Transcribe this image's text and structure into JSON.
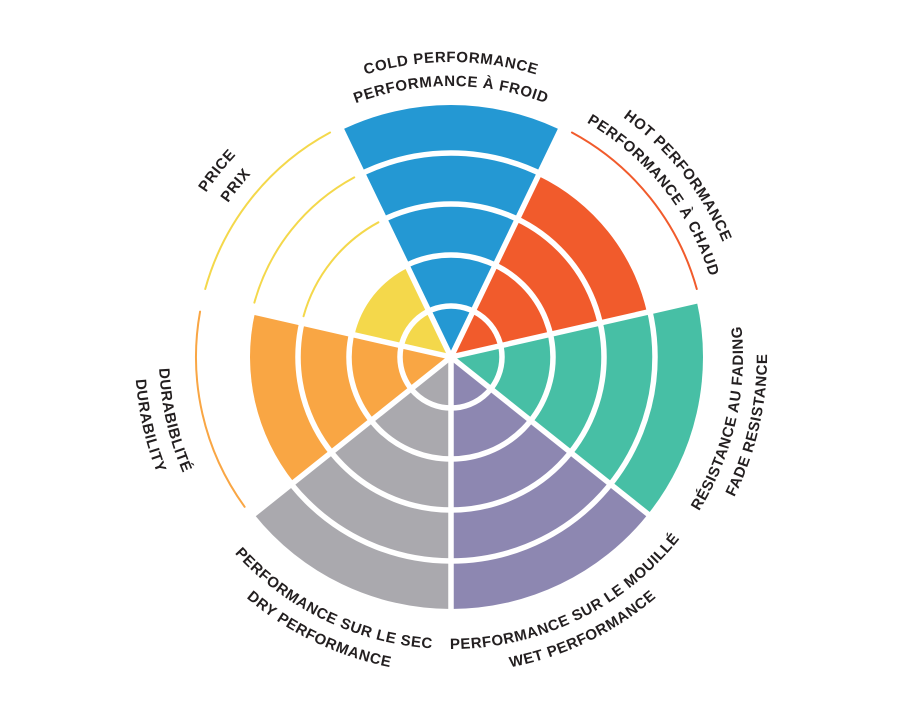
{
  "page": {
    "background": "#FFFFFF",
    "label_text_color": "#231F20"
  },
  "chart_data": {
    "type": "polar_sector_wheel",
    "title": "",
    "description": "Tire rating wheel: 7 sectors, each filled to a score out of 5 concentric rings; unfilled rings drawn as thin outline arcs in the sector color",
    "rings": 5,
    "value_range": [
      0,
      5
    ],
    "grid": "concentric ring dividers, white",
    "legend_position": "labels curved around wheel, bilingual (English outer line, French inner line)",
    "categories": [
      "COLD PERFORMANCE",
      "HOT PERFORMANCE",
      "FADE RESISTANCE",
      "WET PERFORMANCE",
      "DRY PERFORMANCE",
      "DURABILITY",
      "PRICE"
    ],
    "values": [
      5,
      4,
      5,
      5,
      5,
      4,
      2
    ],
    "segments": [
      {
        "id": "cold-performance",
        "label_en": "COLD PERFORMANCE",
        "label_fr": "PERFORMANCE À FROID",
        "value": 5,
        "color": "#2498D3"
      },
      {
        "id": "hot-performance",
        "label_en": "HOT PERFORMANCE",
        "label_fr": "PERFORMANCE À CHAUD",
        "value": 4,
        "color": "#F15B2C"
      },
      {
        "id": "fade-resistance",
        "label_en": "FADE RESISTANCE",
        "label_fr": "RÉSISTANCE AU FADING",
        "value": 5,
        "color": "#47BFA5"
      },
      {
        "id": "wet-performance",
        "label_en": "WET PERFORMANCE",
        "label_fr": "PERFORMANCE SUR LE MOUILLÉ",
        "value": 5,
        "color": "#8D87B1"
      },
      {
        "id": "dry-performance",
        "label_en": "DRY PERFORMANCE",
        "label_fr": "PERFORMANCE SUR LE SEC",
        "value": 5,
        "color": "#AAA9AE"
      },
      {
        "id": "durability",
        "label_en": "DURABILITY",
        "label_fr": "DURABIBLITÉ",
        "value": 4,
        "color": "#F9A644"
      },
      {
        "id": "price",
        "label_en": "PRICE",
        "label_fr": "PRIX",
        "value": 2,
        "color": "#F4D84B"
      }
    ]
  }
}
